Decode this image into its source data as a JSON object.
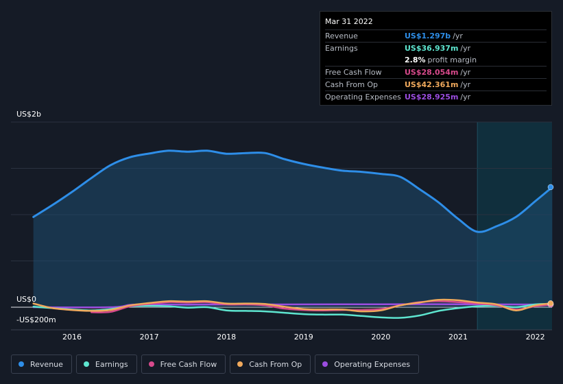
{
  "tooltip": {
    "date": "Mar 31 2022",
    "rows": [
      {
        "label": "Revenue",
        "value": "US$1.297b",
        "unit": "/yr",
        "color": "#2e8ee8"
      },
      {
        "label": "Earnings",
        "value": "US$36.937m",
        "unit": "/yr",
        "color": "#5ee6d0"
      },
      {
        "label": "",
        "value": "2.8%",
        "unit": "profit margin",
        "color": "#ffffff"
      },
      {
        "label": "Free Cash Flow",
        "value": "US$28.054m",
        "unit": "/yr",
        "color": "#d84a8c"
      },
      {
        "label": "Cash From Op",
        "value": "US$42.361m",
        "unit": "/yr",
        "color": "#f0a95c"
      },
      {
        "label": "Operating Expenses",
        "value": "US$28.925m",
        "unit": "/yr",
        "color": "#9b4de0"
      }
    ]
  },
  "legend": [
    {
      "label": "Revenue",
      "color": "#2e8ee8"
    },
    {
      "label": "Earnings",
      "color": "#5ee6d0"
    },
    {
      "label": "Free Cash Flow",
      "color": "#d84a8c"
    },
    {
      "label": "Cash From Op",
      "color": "#f0a95c"
    },
    {
      "label": "Operating Expenses",
      "color": "#9b4de0"
    }
  ],
  "chart_data": {
    "type": "line",
    "title": "",
    "ylabel_top": "US$2b",
    "ylabel_zero": "US$0",
    "ylabel_bottom": "-US$200m",
    "ylim": [
      -200,
      2000
    ],
    "xlim": [
      2015.45,
      2022.25
    ],
    "xticks": [
      {
        "value": 2016,
        "label": "2016"
      },
      {
        "value": 2017,
        "label": "2017"
      },
      {
        "value": 2018,
        "label": "2018"
      },
      {
        "value": 2019,
        "label": "2019"
      },
      {
        "value": 2020,
        "label": "2020"
      },
      {
        "value": 2021,
        "label": "2021"
      },
      {
        "value": 2022,
        "label": "2022"
      }
    ],
    "gridlines": [
      500,
      1000,
      1500,
      2000
    ],
    "highlight_from": 2021.25,
    "series": [
      {
        "name": "Revenue",
        "color": "#2e8ee8",
        "fill": true,
        "points": [
          [
            2015.5,
            975
          ],
          [
            2015.75,
            1105
          ],
          [
            2016.0,
            1245
          ],
          [
            2016.25,
            1395
          ],
          [
            2016.5,
            1535
          ],
          [
            2016.75,
            1620
          ],
          [
            2017.0,
            1660
          ],
          [
            2017.25,
            1690
          ],
          [
            2017.5,
            1680
          ],
          [
            2017.75,
            1690
          ],
          [
            2018.0,
            1658
          ],
          [
            2018.25,
            1665
          ],
          [
            2018.5,
            1665
          ],
          [
            2018.75,
            1600
          ],
          [
            2019.0,
            1548
          ],
          [
            2019.25,
            1508
          ],
          [
            2019.5,
            1475
          ],
          [
            2019.75,
            1462
          ],
          [
            2020.0,
            1440
          ],
          [
            2020.25,
            1408
          ],
          [
            2020.5,
            1275
          ],
          [
            2020.75,
            1130
          ],
          [
            2021.0,
            955
          ],
          [
            2021.25,
            815
          ],
          [
            2021.5,
            875
          ],
          [
            2021.75,
            975
          ],
          [
            2022.0,
            1145
          ],
          [
            2022.22,
            1297
          ]
        ]
      },
      {
        "name": "Earnings",
        "color": "#5ee6d0",
        "points": [
          [
            2015.5,
            5
          ],
          [
            2015.75,
            -10
          ],
          [
            2016.0,
            -25
          ],
          [
            2016.25,
            -35
          ],
          [
            2016.5,
            -20
          ],
          [
            2016.75,
            10
          ],
          [
            2017.0,
            15
          ],
          [
            2017.25,
            10
          ],
          [
            2017.5,
            -5
          ],
          [
            2017.75,
            0
          ],
          [
            2018.0,
            -35
          ],
          [
            2018.25,
            -40
          ],
          [
            2018.5,
            -45
          ],
          [
            2018.75,
            -60
          ],
          [
            2019.0,
            -75
          ],
          [
            2019.25,
            -80
          ],
          [
            2019.5,
            -80
          ],
          [
            2019.75,
            -95
          ],
          [
            2020.0,
            -110
          ],
          [
            2020.25,
            -115
          ],
          [
            2020.5,
            -90
          ],
          [
            2020.75,
            -40
          ],
          [
            2021.0,
            -10
          ],
          [
            2021.25,
            10
          ],
          [
            2021.5,
            15
          ],
          [
            2021.75,
            0
          ],
          [
            2022.0,
            30
          ],
          [
            2022.22,
            37
          ]
        ]
      },
      {
        "name": "Free Cash Flow",
        "color": "#d84a8c",
        "points": [
          [
            2016.25,
            -55
          ],
          [
            2016.5,
            -50
          ],
          [
            2016.75,
            10
          ],
          [
            2017.0,
            35
          ],
          [
            2017.25,
            55
          ],
          [
            2017.5,
            50
          ],
          [
            2017.75,
            55
          ],
          [
            2018.0,
            30
          ],
          [
            2018.25,
            30
          ],
          [
            2018.5,
            20
          ],
          [
            2018.75,
            -15
          ],
          [
            2019.0,
            -30
          ],
          [
            2019.25,
            -35
          ],
          [
            2019.5,
            -30
          ],
          [
            2019.75,
            -30
          ],
          [
            2020.0,
            -20
          ],
          [
            2020.25,
            20
          ],
          [
            2020.5,
            55
          ],
          [
            2020.75,
            65
          ],
          [
            2021.0,
            55
          ],
          [
            2021.25,
            40
          ],
          [
            2021.5,
            20
          ],
          [
            2021.75,
            -25
          ],
          [
            2022.0,
            10
          ],
          [
            2022.22,
            28
          ]
        ]
      },
      {
        "name": "Cash From Op",
        "color": "#f0a95c",
        "points": [
          [
            2015.5,
            40
          ],
          [
            2015.75,
            -10
          ],
          [
            2016.0,
            -30
          ],
          [
            2016.25,
            -40
          ],
          [
            2016.5,
            -30
          ],
          [
            2016.75,
            20
          ],
          [
            2017.0,
            45
          ],
          [
            2017.25,
            65
          ],
          [
            2017.5,
            60
          ],
          [
            2017.75,
            65
          ],
          [
            2018.0,
            40
          ],
          [
            2018.25,
            40
          ],
          [
            2018.5,
            35
          ],
          [
            2018.75,
            5
          ],
          [
            2019.0,
            -20
          ],
          [
            2019.25,
            -25
          ],
          [
            2019.5,
            -25
          ],
          [
            2019.75,
            -45
          ],
          [
            2020.0,
            -35
          ],
          [
            2020.25,
            20
          ],
          [
            2020.5,
            50
          ],
          [
            2020.75,
            80
          ],
          [
            2021.0,
            75
          ],
          [
            2021.25,
            50
          ],
          [
            2021.5,
            30
          ],
          [
            2021.75,
            -35
          ],
          [
            2022.0,
            20
          ],
          [
            2022.22,
            42
          ]
        ]
      },
      {
        "name": "Operating Expenses",
        "color": "#9b4de0",
        "points": [
          [
            2015.5,
            0
          ],
          [
            2016.5,
            0
          ],
          [
            2016.75,
            25
          ],
          [
            2017.0,
            30
          ],
          [
            2017.5,
            28
          ],
          [
            2018.0,
            30
          ],
          [
            2019.0,
            30
          ],
          [
            2020.0,
            32
          ],
          [
            2021.0,
            32
          ],
          [
            2021.5,
            30
          ],
          [
            2022.22,
            29
          ]
        ]
      }
    ]
  }
}
